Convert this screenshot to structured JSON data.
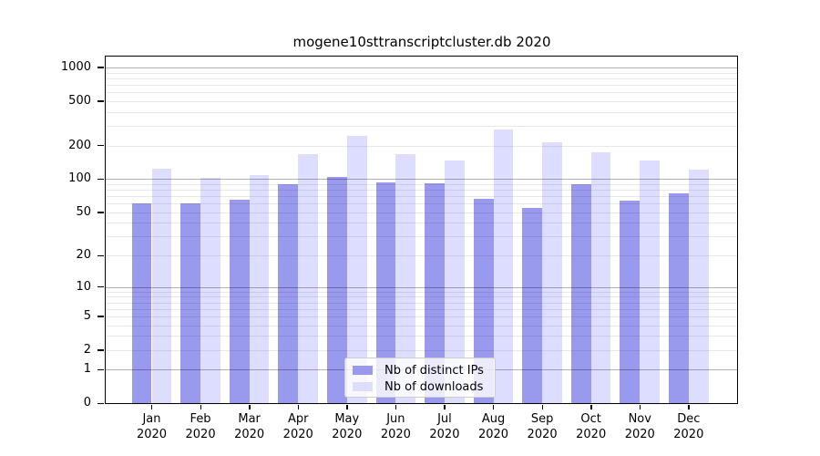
{
  "title": "mogene10sttranscriptcluster.db 2020",
  "background_color": "#ffffff",
  "legend": {
    "items": [
      {
        "label": "Nb of distinct IPs",
        "color": "#9999ee"
      },
      {
        "label": "Nb of downloads",
        "color": "#ddddff"
      }
    ]
  },
  "chart_data": {
    "type": "bar",
    "title": "mogene10sttranscriptcluster.db 2020",
    "categories": [
      "Jan",
      "Feb",
      "Mar",
      "Apr",
      "May",
      "Jun",
      "Jul",
      "Aug",
      "Sep",
      "Oct",
      "Nov",
      "Dec"
    ],
    "category_line2": "2020",
    "series": [
      {
        "name": "Nb of distinct IPs",
        "color": "#9999ee",
        "values": [
          60,
          60,
          64,
          89,
          104,
          92,
          91,
          66,
          54,
          89,
          63,
          73
        ]
      },
      {
        "name": "Nb of downloads",
        "color": "#ddddff",
        "values": [
          122,
          102,
          107,
          165,
          244,
          165,
          146,
          275,
          213,
          171,
          145,
          120
        ]
      }
    ],
    "xlabel": "",
    "ylabel": "",
    "yscale": "log10(1+value)",
    "yticks": [
      0,
      1,
      2,
      5,
      10,
      20,
      50,
      100,
      200,
      500,
      1000
    ],
    "major_grid_values": [
      1,
      10,
      100,
      1000
    ],
    "minor_grid_decades": [
      1,
      10,
      100
    ],
    "ylim": [
      0,
      1275
    ],
    "grid": true,
    "legend_position": "bottom-center-inside",
    "major_grid_color": "rgba(0,0,0,0.30)",
    "minor_grid_color": "rgba(0,0,0,0.09)"
  }
}
